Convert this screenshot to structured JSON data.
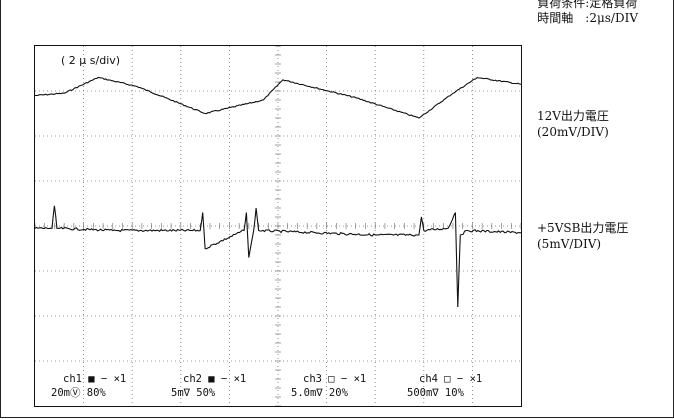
{
  "header": {
    "condition_line": "負荷条件:定格負荷",
    "timebase_line": "時間軸　:2μs/DIV"
  },
  "scope": {
    "timebase_label": "( 2 μ s/div)",
    "channel_names": [
      "ch1",
      "ch2",
      "ch3",
      "ch4"
    ],
    "channel_markers": [
      "■",
      "■",
      "□",
      "□"
    ],
    "channel_coupling": [
      "− ×1",
      "− ×1",
      "− ×1",
      "− ×1"
    ],
    "channel_scales": [
      "20mⓋ",
      "5m∇",
      "5.0m∇",
      "500m∇"
    ],
    "channel_positions": [
      "80%",
      "50%",
      "20%",
      "10%"
    ]
  },
  "traces": [
    {
      "label": "12V出力電圧",
      "scale": "(20mV/DIV)"
    },
    {
      "label": "+5VSB出力電圧",
      "scale": "(5mV/DIV)"
    }
  ],
  "chart_data": {
    "type": "line",
    "title": "",
    "xlabel": "",
    "ylabel": "",
    "x_divisions": 10,
    "y_divisions": 8,
    "xlim": [
      0,
      10
    ],
    "ylim": [
      0,
      8
    ],
    "series": [
      {
        "name": "12V出力電圧",
        "x": [
          0,
          0.6,
          1.3,
          2.1,
          3.5,
          4.7,
          5.1,
          6.6,
          7.9,
          8.6,
          9.1,
          10
        ],
        "y": [
          6.9,
          6.95,
          7.3,
          7.1,
          6.5,
          6.8,
          7.25,
          6.85,
          6.4,
          6.95,
          7.3,
          7.15
        ]
      },
      {
        "name": "+5VSB出力電圧",
        "x": [
          0,
          0.35,
          0.4,
          0.45,
          1.6,
          3.4,
          3.45,
          3.5,
          4.3,
          4.35,
          4.4,
          4.5,
          4.55,
          4.6,
          7.0,
          7.9,
          7.95,
          8.0,
          8.5,
          8.65,
          8.7,
          8.75,
          8.9,
          10
        ],
        "y": [
          3.95,
          3.95,
          4.45,
          3.95,
          3.9,
          3.9,
          4.3,
          3.5,
          3.9,
          4.3,
          3.3,
          3.9,
          4.4,
          3.9,
          3.8,
          3.8,
          4.2,
          3.9,
          3.95,
          4.3,
          2.2,
          3.8,
          3.9,
          3.85
        ]
      }
    ]
  }
}
